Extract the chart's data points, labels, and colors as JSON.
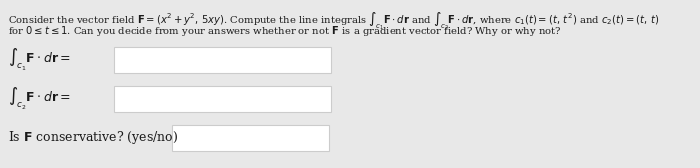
{
  "bg_color": "#e8e8e8",
  "box_color": "#ffffff",
  "box_edge_color": "#cccccc",
  "text_color": "#1a1a1a",
  "line1": "Consider the vector field $\\mathbf{F} = (x^2 + y^2,\\, 5xy)$. Compute the line integrals $\\int_{c_1} \\mathbf{F} \\cdot d\\mathbf{r}$ and $\\int_{c_2} \\mathbf{F} \\cdot d\\mathbf{r}$, where $c_1(t) = (t,\\, t^2)$ and $c_2(t) = (t,\\, t)$",
  "line2": "for $0 \\leq t \\leq 1$. Can you decide from your answers whether or not $\\mathbf{F}$ is a gradient vector field? Why or why not?",
  "label1": "$\\int_{c_1} \\mathbf{F} \\cdot d\\mathbf{r} =$",
  "label2": "$\\int_{c_2} \\mathbf{F} \\cdot d\\mathbf{r} =$",
  "label3": "Is $\\mathbf{F}$ conservative? (yes/no)",
  "desc_fontsize": 7.2,
  "label_fontsize": 9.0,
  "fig_width": 7.0,
  "fig_height": 1.68,
  "dpi": 100
}
